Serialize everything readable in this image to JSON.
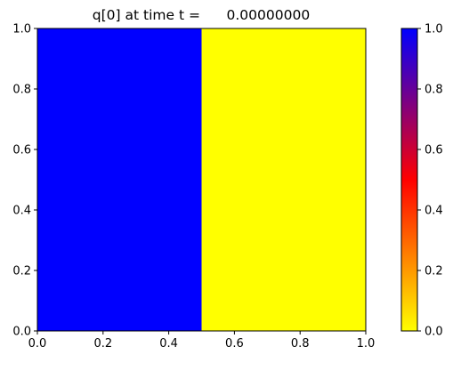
{
  "chart_data": {
    "type": "heatmap",
    "title": "q[0] at time t =      0.00000000",
    "xlim": [
      0.0,
      1.0
    ],
    "ylim": [
      0.0,
      1.0
    ],
    "x_ticks": [
      "0.0",
      "0.2",
      "0.4",
      "0.6",
      "0.8",
      "1.0"
    ],
    "y_ticks": [
      "0.0",
      "0.2",
      "0.4",
      "0.6",
      "0.8",
      "1.0"
    ],
    "regions": [
      {
        "x": [
          0.0,
          0.5
        ],
        "y": [
          0.0,
          1.0
        ],
        "value": 1.0
      },
      {
        "x": [
          0.5,
          1.0
        ],
        "y": [
          0.0,
          1.0
        ],
        "value": 0.0
      }
    ],
    "colorbar": {
      "range": [
        0.0,
        1.0
      ],
      "ticks": [
        "0.0",
        "0.2",
        "0.4",
        "0.6",
        "0.8",
        "1.0"
      ],
      "colormap": [
        "#ffff00",
        "#ff0000",
        "#0000ff"
      ]
    },
    "grid": false,
    "legend": "none"
  }
}
